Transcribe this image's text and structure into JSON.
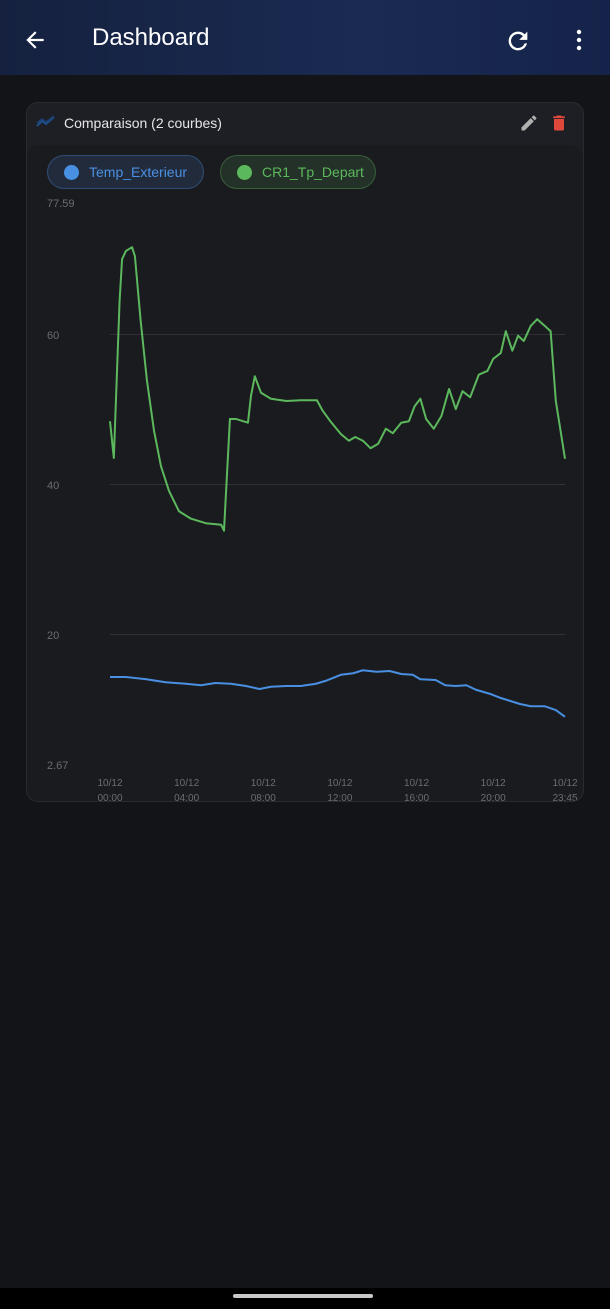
{
  "header": {
    "title": "Dashboard"
  },
  "card": {
    "title": "Comparaison (2 courbes)"
  },
  "chart_data": {
    "type": "line",
    "xlim": [
      0,
      23.75
    ],
    "xticks": [
      {
        "value": 0,
        "label": "10/12 00:00"
      },
      {
        "value": 4,
        "label": "10/12 04:00"
      },
      {
        "value": 8,
        "label": "10/12 08:00"
      },
      {
        "value": 12,
        "label": "10/12 12:00"
      },
      {
        "value": 16,
        "label": "10/12 16:00"
      },
      {
        "value": 20,
        "label": "10/12 20:00"
      },
      {
        "value": 23.75,
        "label": "10/12 23:45"
      }
    ],
    "ylim": [
      2.67,
      77.59
    ],
    "yticks": [
      2.67,
      20,
      40,
      60,
      77.59
    ],
    "grid": true,
    "series": [
      {
        "name": "Temp_Exterieur",
        "color": "#4a90e2",
        "x": [
          0,
          0.83,
          1.9,
          2.9,
          3.96,
          4.75,
          5.5,
          6.3,
          7.1,
          7.8,
          8.4,
          9.2,
          9.96,
          10.75,
          11.27,
          12.05,
          12.7,
          13.2,
          13.9,
          14.6,
          15.2,
          15.8,
          16.2,
          17.0,
          17.5,
          18.05,
          18.6,
          19.1,
          19.9,
          20.4,
          20.9,
          21.4,
          21.96,
          22.7,
          23.27,
          23.75
        ],
        "values": [
          14.4,
          14.4,
          14.1,
          13.7,
          13.5,
          13.3,
          13.6,
          13.5,
          13.2,
          12.8,
          13.1,
          13.2,
          13.2,
          13.5,
          13.9,
          14.7,
          14.9,
          15.3,
          15.1,
          15.2,
          14.8,
          14.7,
          14.1,
          14.0,
          13.3,
          13.2,
          13.3,
          12.7,
          12.1,
          11.6,
          11.2,
          10.8,
          10.5,
          10.5,
          10.0,
          9.1
        ]
      },
      {
        "name": "CR1_Tp_Depart",
        "color": "#5cb85c",
        "x": [
          0,
          0.2,
          0.5,
          0.63,
          0.83,
          1.15,
          1.3,
          1.6,
          1.93,
          2.3,
          2.66,
          3.08,
          3.6,
          4.23,
          5.0,
          5.8,
          5.95,
          6.26,
          6.57,
          7.2,
          7.36,
          7.56,
          7.88,
          8.4,
          9.2,
          9.96,
          10.8,
          11.1,
          11.5,
          12.05,
          12.47,
          12.8,
          13.2,
          13.6,
          14.0,
          14.4,
          14.76,
          15.2,
          15.6,
          15.9,
          16.2,
          16.5,
          16.9,
          17.3,
          17.7,
          18.05,
          18.4,
          18.8,
          19.25,
          19.7,
          20.0,
          20.4,
          20.66,
          21.0,
          21.3,
          21.6,
          21.96,
          22.3,
          22.7,
          23.0,
          23.27,
          23.75
        ],
        "values": [
          48.5,
          43.6,
          64.5,
          70.1,
          71.2,
          71.7,
          70.5,
          61.9,
          53.9,
          47.2,
          42.5,
          39.2,
          36.5,
          35.5,
          34.9,
          34.7,
          33.9,
          48.8,
          48.8,
          48.3,
          51.9,
          54.5,
          52.3,
          51.5,
          51.2,
          51.3,
          51.3,
          49.9,
          48.5,
          46.8,
          45.9,
          46.4,
          45.9,
          44.9,
          45.5,
          47.5,
          46.9,
          48.3,
          48.5,
          50.5,
          51.5,
          48.8,
          47.5,
          49.2,
          52.8,
          50.1,
          52.5,
          51.7,
          54.7,
          55.2,
          56.8,
          57.6,
          60.5,
          57.9,
          59.9,
          59.2,
          61.2,
          62.1,
          61.2,
          60.5,
          51.2,
          43.5
        ]
      }
    ]
  }
}
